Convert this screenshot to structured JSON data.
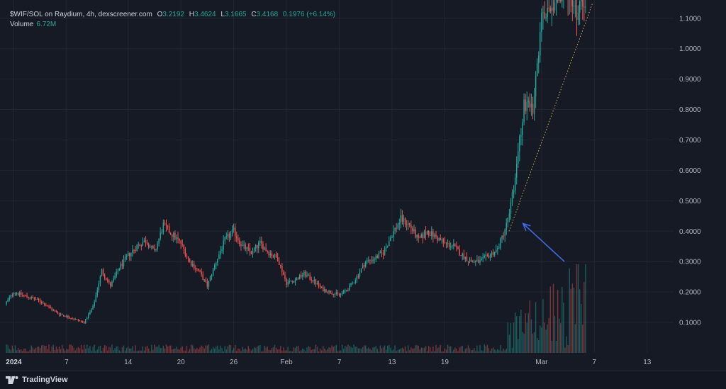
{
  "legend": {
    "symbol": "$WIF/SOL on Raydium, 4h, dexscreener.com",
    "open_label": "O",
    "open": "3.2192",
    "high_label": "H",
    "high": "3.4624",
    "low_label": "L",
    "low": "3.1665",
    "close_label": "C",
    "close": "3.4168",
    "change": "0.1976 (+6.14%)",
    "volume_label": "Volume",
    "volume": "6.72M"
  },
  "footer": {
    "brand": "TradingView"
  },
  "colors": {
    "background": "#161a25",
    "up": "#26a69a",
    "down": "#ef5350",
    "grid": "#232632",
    "annotation_arrow": "#3d6ee8",
    "trend_line": "#c9b94d"
  },
  "chart_data": {
    "type": "candlestick",
    "title": "$WIF/SOL on Raydium, 4h, dexscreener.com",
    "y_ticks": [
      "0.1000",
      "0.2000",
      "0.3000",
      "0.4000",
      "0.5000",
      "0.6000",
      "0.7000",
      "0.8000",
      "0.9000",
      "1.0000",
      "1.1000"
    ],
    "ylim": [
      0.0,
      1.16
    ],
    "x_ticks": [
      {
        "label": "2024",
        "bold": true,
        "day_index": 0
      },
      {
        "label": "7",
        "bold": false,
        "day_index": 6
      },
      {
        "label": "14",
        "bold": false,
        "day_index": 13
      },
      {
        "label": "20",
        "bold": false,
        "day_index": 19
      },
      {
        "label": "26",
        "bold": false,
        "day_index": 25
      },
      {
        "label": "Feb",
        "bold": false,
        "day_index": 31
      },
      {
        "label": "7",
        "bold": false,
        "day_index": 37
      },
      {
        "label": "13",
        "bold": false,
        "day_index": 43
      },
      {
        "label": "19",
        "bold": false,
        "day_index": 49
      },
      {
        "label": "Mar",
        "bold": false,
        "day_index": 60
      },
      {
        "label": "7",
        "bold": false,
        "day_index": 66
      },
      {
        "label": "13",
        "bold": false,
        "day_index": 72
      }
    ],
    "x_range_days": [
      -1.0,
      75.0
    ],
    "candles_per_day": 6,
    "price_path_day_close": [
      [
        -1.0,
        0.16
      ],
      [
        0,
        0.2
      ],
      [
        1,
        0.19
      ],
      [
        2,
        0.18
      ],
      [
        3,
        0.17
      ],
      [
        4,
        0.15
      ],
      [
        5,
        0.13
      ],
      [
        6,
        0.12
      ],
      [
        7,
        0.11
      ],
      [
        8,
        0.1
      ],
      [
        9,
        0.15
      ],
      [
        10,
        0.27
      ],
      [
        11,
        0.22
      ],
      [
        12,
        0.28
      ],
      [
        13,
        0.32
      ],
      [
        14,
        0.35
      ],
      [
        15,
        0.37
      ],
      [
        16,
        0.33
      ],
      [
        17,
        0.42
      ],
      [
        18,
        0.39
      ],
      [
        19,
        0.36
      ],
      [
        20,
        0.3
      ],
      [
        21,
        0.27
      ],
      [
        22,
        0.22
      ],
      [
        23,
        0.3
      ],
      [
        24,
        0.37
      ],
      [
        25,
        0.4
      ],
      [
        26,
        0.35
      ],
      [
        27,
        0.33
      ],
      [
        28,
        0.36
      ],
      [
        29,
        0.33
      ],
      [
        30,
        0.31
      ],
      [
        31,
        0.23
      ],
      [
        32,
        0.24
      ],
      [
        33,
        0.26
      ],
      [
        34,
        0.24
      ],
      [
        35,
        0.21
      ],
      [
        36,
        0.2
      ],
      [
        37,
        0.19
      ],
      [
        38,
        0.21
      ],
      [
        39,
        0.25
      ],
      [
        40,
        0.3
      ],
      [
        41,
        0.31
      ],
      [
        42,
        0.33
      ],
      [
        43,
        0.39
      ],
      [
        44,
        0.44
      ],
      [
        45,
        0.42
      ],
      [
        46,
        0.37
      ],
      [
        47,
        0.4
      ],
      [
        48,
        0.38
      ],
      [
        49,
        0.36
      ],
      [
        50,
        0.35
      ],
      [
        51,
        0.32
      ],
      [
        52,
        0.3
      ],
      [
        53,
        0.3
      ],
      [
        54,
        0.32
      ],
      [
        55,
        0.34
      ],
      [
        56,
        0.42
      ],
      [
        57,
        0.57
      ],
      [
        58,
        0.82
      ],
      [
        59,
        0.79
      ],
      [
        60,
        1.09
      ],
      [
        61,
        1.15
      ],
      [
        62,
        1.18
      ],
      [
        63,
        1.19
      ],
      [
        64,
        1.12
      ],
      [
        65,
        1.17
      ]
    ],
    "annotations": [
      {
        "type": "arrow",
        "from": {
          "day": 62.6,
          "price": 0.3
        },
        "to": {
          "day": 57.9,
          "price": 0.425
        }
      },
      {
        "type": "trend_line",
        "style": "dotted",
        "from": {
          "day": 56.3,
          "price": 0.4
        },
        "to": {
          "day": 65.8,
          "price": 1.15
        }
      }
    ]
  }
}
